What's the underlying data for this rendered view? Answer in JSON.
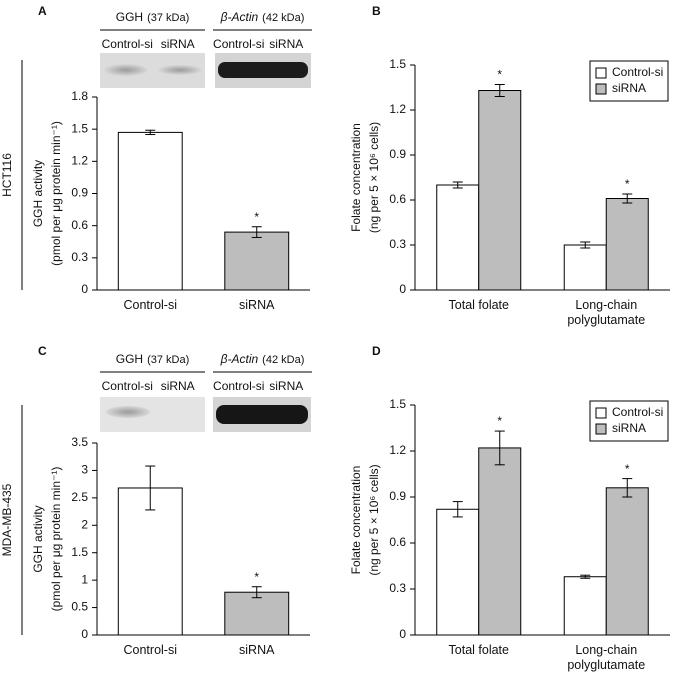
{
  "chart_data": [
    {
      "type": "bar",
      "panel": "A",
      "cell_line": "HCT116",
      "blots": [
        {
          "label": "GGH",
          "size": "(37 kDa)",
          "lanes": [
            "Control-si",
            "siRNA"
          ]
        },
        {
          "label": "β-Actin",
          "size": "(42 kDa)",
          "lanes": [
            "Control-si",
            "siRNA"
          ]
        }
      ],
      "ylabel": [
        "GGH activity",
        "(pmol per μg protein min⁻¹)"
      ],
      "categories": [
        "Control-si",
        "siRNA"
      ],
      "values": [
        1.47,
        0.54
      ],
      "errors": [
        0.02,
        0.05
      ],
      "annotations": [
        null,
        "*"
      ],
      "colors": [
        "#ffffff",
        "#bdbdbd"
      ],
      "ylim": [
        0,
        1.8
      ],
      "yticks": [
        0,
        0.3,
        0.6,
        0.9,
        1.2,
        1.5,
        1.8
      ]
    },
    {
      "type": "grouped_bar",
      "panel": "B",
      "ylabel": [
        "Folate concentration",
        "(ng per 5 × 10⁶ cells)"
      ],
      "categories": [
        "Total folate",
        "Long-chain polyglutamate"
      ],
      "series": [
        {
          "name": "Control-si",
          "color": "#ffffff",
          "values": [
            0.7,
            0.3
          ],
          "errors": [
            0.02,
            0.02
          ]
        },
        {
          "name": "siRNA",
          "color": "#bdbdbd",
          "values": [
            1.33,
            0.61
          ],
          "errors": [
            0.04,
            0.03
          ],
          "annotations": [
            "*",
            "*"
          ]
        }
      ],
      "legend": "upper right",
      "ylim": [
        0,
        1.5
      ],
      "yticks": [
        0,
        0.3,
        0.6,
        0.9,
        1.2,
        1.5
      ]
    },
    {
      "type": "bar",
      "panel": "C",
      "cell_line": "MDA-MB-435",
      "blots": [
        {
          "label": "GGH",
          "size": "(37 kDa)",
          "lanes": [
            "Control-si",
            "siRNA"
          ]
        },
        {
          "label": "β-Actin",
          "size": "(42 kDa)",
          "lanes": [
            "Control-si",
            "siRNA"
          ]
        }
      ],
      "ylabel": [
        "GGH activity",
        "(pmol per μg protein min⁻¹)"
      ],
      "categories": [
        "Control-si",
        "siRNA"
      ],
      "values": [
        2.68,
        0.78
      ],
      "errors": [
        0.4,
        0.1
      ],
      "annotations": [
        null,
        "*"
      ],
      "colors": [
        "#ffffff",
        "#bdbdbd"
      ],
      "ylim": [
        0,
        3.5
      ],
      "yticks": [
        0,
        0.5,
        1,
        1.5,
        2,
        2.5,
        3,
        3.5
      ]
    },
    {
      "type": "grouped_bar",
      "panel": "D",
      "ylabel": [
        "Folate concentration",
        "(ng per 5 × 10⁶ cells)"
      ],
      "categories": [
        "Total folate",
        "Long-chain polyglutamate"
      ],
      "series": [
        {
          "name": "Control-si",
          "color": "#ffffff",
          "values": [
            0.82,
            0.38
          ],
          "errors": [
            0.05,
            0.01
          ]
        },
        {
          "name": "siRNA",
          "color": "#bdbdbd",
          "values": [
            1.22,
            0.96
          ],
          "errors": [
            0.11,
            0.06
          ],
          "annotations": [
            "*",
            "*"
          ]
        }
      ],
      "legend": "upper right",
      "ylim": [
        0,
        1.5
      ],
      "yticks": [
        0,
        0.3,
        0.6,
        0.9,
        1.2,
        1.5
      ]
    }
  ]
}
